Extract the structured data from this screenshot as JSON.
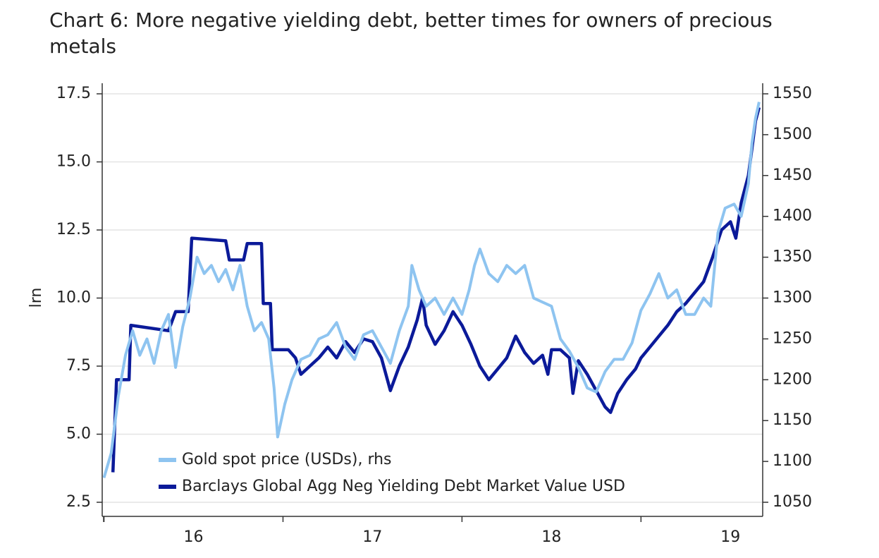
{
  "chart_data": {
    "type": "line",
    "title": "Chart 6: More negative yielding debt, better times for owners of precious metals",
    "ylabel": "lrn",
    "xlim": [
      2015.99,
      2019.68
    ],
    "xticks": [
      {
        "value": 2016.5,
        "label": "16"
      },
      {
        "value": 2017.5,
        "label": "17"
      },
      {
        "value": 2018.5,
        "label": "18"
      },
      {
        "value": 2019.5,
        "label": "19"
      }
    ],
    "xtick_marks": [
      2016,
      2017,
      2018,
      2019
    ],
    "ylim": [
      2.5,
      17.5
    ],
    "yticks": [
      {
        "value": 2.5,
        "label": "2.5"
      },
      {
        "value": 5,
        "label": "5.0"
      },
      {
        "value": 7.5,
        "label": "7.5"
      },
      {
        "value": 10,
        "label": "10.0"
      },
      {
        "value": 12.5,
        "label": "12.5"
      },
      {
        "value": 15,
        "label": "15.0"
      },
      {
        "value": 17.5,
        "label": "17.5"
      }
    ],
    "y2lim": [
      1050,
      1550
    ],
    "y2ticks": [
      1050,
      1100,
      1150,
      1200,
      1250,
      1300,
      1350,
      1400,
      1450,
      1500,
      1550
    ],
    "grid": true,
    "legend": "lower left",
    "series": [
      {
        "name": "Gold spot price (USDs), rhs",
        "color": "#8ec4f0",
        "axis": "y2",
        "x": [
          2016.0,
          2016.04,
          2016.08,
          2016.12,
          2016.16,
          2016.2,
          2016.24,
          2016.28,
          2016.32,
          2016.36,
          2016.4,
          2016.44,
          2016.48,
          2016.52,
          2016.56,
          2016.6,
          2016.64,
          2016.68,
          2016.72,
          2016.76,
          2016.8,
          2016.84,
          2016.88,
          2016.92,
          2016.95,
          2016.97,
          2017.01,
          2017.05,
          2017.1,
          2017.15,
          2017.2,
          2017.25,
          2017.3,
          2017.35,
          2017.4,
          2017.45,
          2017.5,
          2017.55,
          2017.6,
          2017.65,
          2017.7,
          2017.72,
          2017.76,
          2017.8,
          2017.85,
          2017.9,
          2017.95,
          2018.0,
          2018.04,
          2018.07,
          2018.1,
          2018.15,
          2018.2,
          2018.25,
          2018.3,
          2018.35,
          2018.4,
          2018.45,
          2018.5,
          2018.55,
          2018.6,
          2018.65,
          2018.7,
          2018.75,
          2018.8,
          2018.85,
          2018.9,
          2018.95,
          2019.0,
          2019.05,
          2019.1,
          2019.15,
          2019.2,
          2019.25,
          2019.3,
          2019.35,
          2019.39,
          2019.43,
          2019.47,
          2019.52,
          2019.56,
          2019.6,
          2019.62,
          2019.64,
          2019.66
        ],
        "values": [
          1080,
          1110,
          1180,
          1230,
          1260,
          1230,
          1250,
          1220,
          1260,
          1280,
          1215,
          1265,
          1300,
          1350,
          1330,
          1340,
          1320,
          1335,
          1310,
          1340,
          1290,
          1260,
          1270,
          1250,
          1190,
          1130,
          1170,
          1200,
          1225,
          1230,
          1250,
          1255,
          1270,
          1240,
          1225,
          1255,
          1260,
          1240,
          1220,
          1260,
          1290,
          1340,
          1310,
          1290,
          1300,
          1280,
          1300,
          1280,
          1310,
          1340,
          1360,
          1330,
          1320,
          1340,
          1330,
          1340,
          1300,
          1295,
          1290,
          1250,
          1235,
          1215,
          1190,
          1185,
          1210,
          1225,
          1225,
          1245,
          1285,
          1305,
          1330,
          1300,
          1310,
          1280,
          1280,
          1300,
          1290,
          1380,
          1410,
          1415,
          1400,
          1440,
          1490,
          1520,
          1540
        ]
      },
      {
        "name": "Barclays Global Agg Neg Yielding Debt Market Value USD",
        "color": "#0b1a99",
        "x": [
          2016.05,
          2016.07,
          2016.14,
          2016.15,
          2016.36,
          2016.4,
          2016.47,
          2016.49,
          2016.68,
          2016.7,
          2016.78,
          2016.8,
          2016.88,
          2016.89,
          2016.93,
          2016.94,
          2017.03,
          2017.07,
          2017.1,
          2017.15,
          2017.2,
          2017.25,
          2017.3,
          2017.35,
          2017.4,
          2017.45,
          2017.5,
          2017.55,
          2017.6,
          2017.65,
          2017.7,
          2017.75,
          2017.78,
          2017.8,
          2017.85,
          2017.9,
          2017.95,
          2018.0,
          2018.05,
          2018.1,
          2018.15,
          2018.2,
          2018.25,
          2018.3,
          2018.35,
          2018.4,
          2018.45,
          2018.48,
          2018.5,
          2018.55,
          2018.6,
          2018.62,
          2018.65,
          2018.7,
          2018.75,
          2018.8,
          2018.83,
          2018.87,
          2018.92,
          2018.97,
          2019.0,
          2019.05,
          2019.1,
          2019.15,
          2019.2,
          2019.25,
          2019.3,
          2019.35,
          2019.4,
          2019.45,
          2019.5,
          2019.53,
          2019.56,
          2019.6,
          2019.62,
          2019.64,
          2019.66
        ],
        "values": [
          3.6,
          7.0,
          7.0,
          9.0,
          8.8,
          9.5,
          9.5,
          12.2,
          12.1,
          11.4,
          11.4,
          12.0,
          12.0,
          9.8,
          9.8,
          8.1,
          8.1,
          7.8,
          7.2,
          7.5,
          7.8,
          8.2,
          7.8,
          8.4,
          8.0,
          8.5,
          8.4,
          7.8,
          6.6,
          7.5,
          8.2,
          9.2,
          10.0,
          9.0,
          8.3,
          8.8,
          9.5,
          9.0,
          8.3,
          7.5,
          7.0,
          7.4,
          7.8,
          8.6,
          8.0,
          7.6,
          7.9,
          7.2,
          8.1,
          8.1,
          7.8,
          6.5,
          7.7,
          7.2,
          6.6,
          6.0,
          5.8,
          6.5,
          7.0,
          7.4,
          7.8,
          8.2,
          8.6,
          9.0,
          9.5,
          9.8,
          10.2,
          10.6,
          11.5,
          12.5,
          12.8,
          12.2,
          13.5,
          14.5,
          15.5,
          16.5,
          17.0
        ]
      }
    ]
  }
}
